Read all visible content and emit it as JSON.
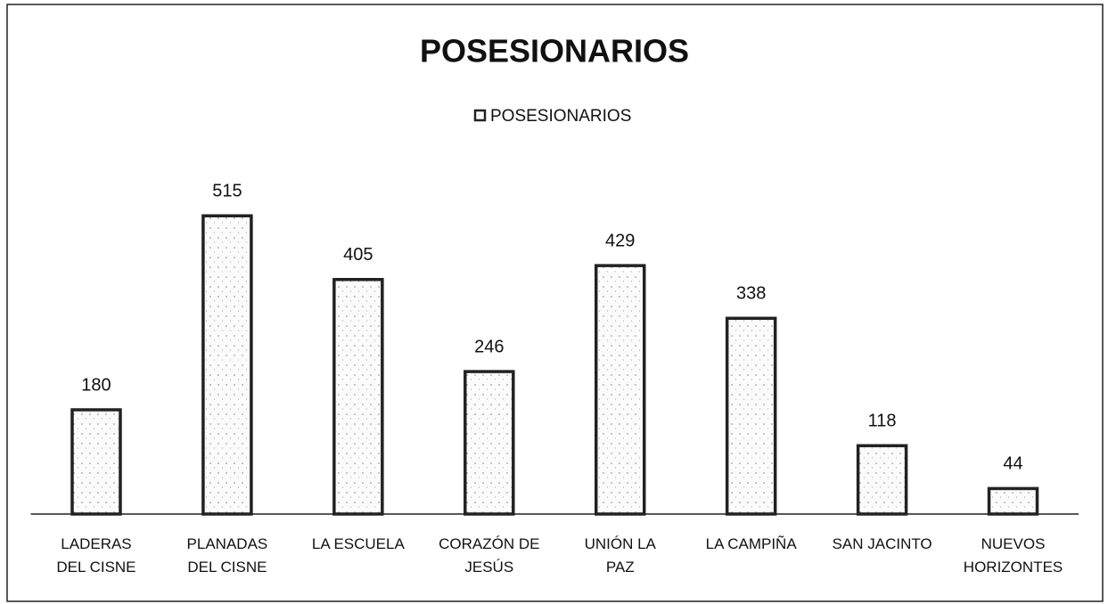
{
  "chart_data": {
    "type": "bar",
    "title": "POSESIONARIOS",
    "categories": [
      "LADERAS DEL CISNE",
      "PLANADAS DEL CISNE",
      "LA ESCUELA",
      "CORAZÓN DE JESÚS",
      "UNIÓN LA PAZ",
      "LA CAMPIÑA",
      "SAN JACINTO",
      "NUEVOS HORIZONTES"
    ],
    "series": [
      {
        "name": "POSESIONARIOS",
        "color": "#222222",
        "values": [
          180,
          515,
          405,
          246,
          429,
          338,
          118,
          44
        ]
      }
    ],
    "ylim": [
      0,
      600
    ],
    "legend": "top",
    "data_labels": true
  }
}
